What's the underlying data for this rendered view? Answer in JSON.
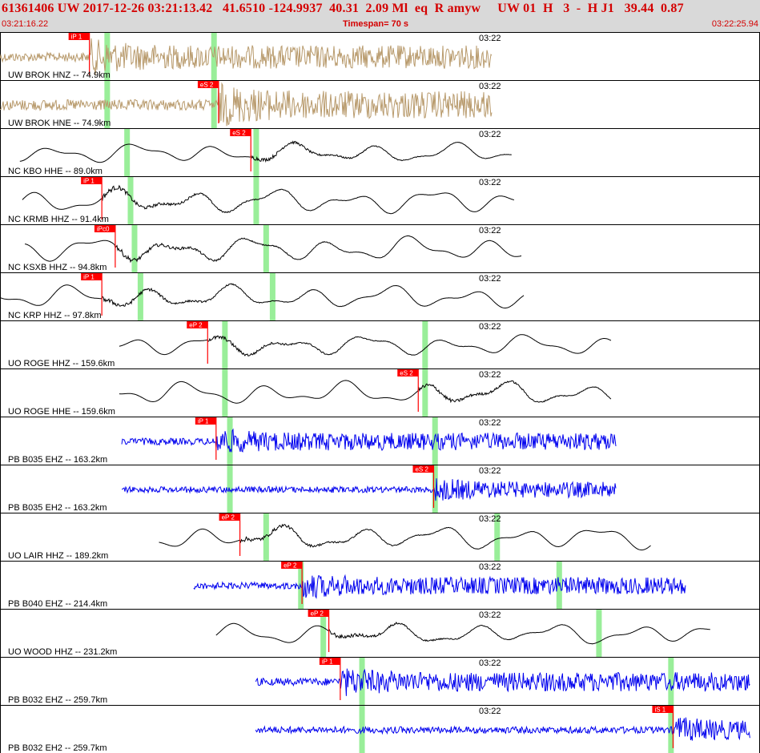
{
  "header": {
    "title": "61361406 UW 2017-12-26 03:21:13.42   41.6510 -124.9937  40.31  2.09 Ml  eq  R amyw     UW 01  H   3  -  H J1   39.44  0.87",
    "start_time": "03:21:16.22",
    "timespan": "Timespan=  70 s",
    "end_time": "03:22:25.94"
  },
  "colors": {
    "brown": "#b89a6c",
    "black": "#000000",
    "blue": "#0000ee",
    "pick": "#ff0000",
    "window": "#99ee99"
  },
  "traces": [
    {
      "label": "UW BROK HNZ -- 74.9km",
      "time_mark": "03:22",
      "pick_label": "iP 1",
      "pick": 0.18,
      "green": [
        0.215,
        0.43
      ],
      "start": 0.0,
      "end": 0.99,
      "type": "noise",
      "color": "brown",
      "amp": 0.27
    },
    {
      "label": "UW BROK HNE -- 74.9km",
      "time_mark": "03:22",
      "pick_label": "eS 2",
      "pick": 0.44,
      "green": [
        0.215,
        0.43
      ],
      "start": 0.0,
      "end": 0.99,
      "type": "noise",
      "color": "brown",
      "amp": 0.32
    },
    {
      "label": "NC KBO HHE -- 89.0km",
      "time_mark": "03:22",
      "pick_label": "eS 2",
      "pick": 0.505,
      "green": [
        0.255,
        0.515
      ],
      "start": 0.04,
      "end": 1.03,
      "type": "wave",
      "color": "black",
      "amp": 0.24
    },
    {
      "label": "NC KRMB HHZ -- 91.4km",
      "time_mark": "03:22",
      "pick_label": "iP 1",
      "pick": 0.205,
      "green": [
        0.262,
        0.515
      ],
      "start": 0.045,
      "end": 1.035,
      "type": "wave",
      "color": "black",
      "amp": 0.3
    },
    {
      "label": "NC KSXB HHZ -- 94.8km",
      "time_mark": "03:22",
      "pick_label": "iPc0",
      "pick": 0.232,
      "green": [
        0.27,
        0.535
      ],
      "start": 0.05,
      "end": 1.05,
      "type": "wave",
      "color": "black",
      "amp": 0.3
    },
    {
      "label": "NC KRP HHZ -- 97.8km",
      "time_mark": "03:22",
      "pick_label": "iP 1",
      "pick": 0.205,
      "green": [
        0.282,
        0.548
      ],
      "start": 0.0,
      "end": 1.055,
      "type": "wave",
      "color": "black",
      "amp": 0.28
    },
    {
      "label": "UO ROGE HHZ -- 159.6km",
      "time_mark": "03:22",
      "pick_label": "eP 2",
      "pick": 0.418,
      "green": [
        0.452,
        0.855
      ],
      "start": 0.24,
      "end": 1.23,
      "type": "wave",
      "color": "black",
      "amp": 0.25
    },
    {
      "label": "UO ROGE HHE -- 159.6km",
      "time_mark": "03:22",
      "pick_label": "eS 2",
      "pick": 0.842,
      "green": [
        0.452,
        0.855
      ],
      "start": 0.24,
      "end": 1.23,
      "type": "wave",
      "color": "black",
      "amp": 0.28
    },
    {
      "label": "PB B035 EHZ -- 163.2km",
      "time_mark": "03:22",
      "pick_label": "iP 1",
      "pick": 0.435,
      "green": [
        0.462,
        0.875
      ],
      "start": 0.245,
      "end": 1.24,
      "type": "noise",
      "color": "blue",
      "amp": 0.2
    },
    {
      "label": "PB B035 EH2 -- 163.2km",
      "time_mark": "03:22",
      "pick_label": "eS 2",
      "pick": 0.873,
      "green": [
        0.462,
        0.875
      ],
      "start": 0.245,
      "end": 1.24,
      "type": "noise",
      "color": "blue",
      "amp": 0.18
    },
    {
      "label": "UO LAIR HHZ -- 189.2km",
      "time_mark": "03:22",
      "pick_label": "eP 2",
      "pick": 0.483,
      "green": [
        0.535,
        1.0
      ],
      "start": 0.32,
      "end": 1.31,
      "type": "wave",
      "color": "black",
      "amp": 0.28
    },
    {
      "label": "PB B040 EHZ -- 214.4km",
      "time_mark": "03:22",
      "pick_label": "eP 2",
      "pick": 0.608,
      "green": [
        0.605,
        1.125
      ],
      "start": 0.39,
      "end": 1.38,
      "type": "noise",
      "color": "blue",
      "amp": 0.2
    },
    {
      "label": "UO WOOD HHZ -- 231.2km",
      "time_mark": "03:22",
      "pick_label": "eP 2",
      "pick": 0.662,
      "green": [
        0.65,
        1.205
      ],
      "start": 0.435,
      "end": 1.43,
      "type": "wave",
      "color": "black",
      "amp": 0.25
    },
    {
      "label": "PB B032 EHZ -- 259.7km",
      "time_mark": "03:22",
      "pick_label": "iP 1",
      "pick": 0.685,
      "green": [
        0.728,
        1.35
      ],
      "start": 0.515,
      "end": 1.51,
      "type": "noise",
      "color": "blue",
      "amp": 0.22
    },
    {
      "label": "PB B032 EH2 -- 259.7km",
      "time_mark": "03:22",
      "pick_label": "iS 1",
      "pick": 1.355,
      "green": [
        0.728,
        1.35
      ],
      "start": 0.515,
      "end": 1.51,
      "type": "noise",
      "color": "blue",
      "amp": 0.2
    }
  ]
}
